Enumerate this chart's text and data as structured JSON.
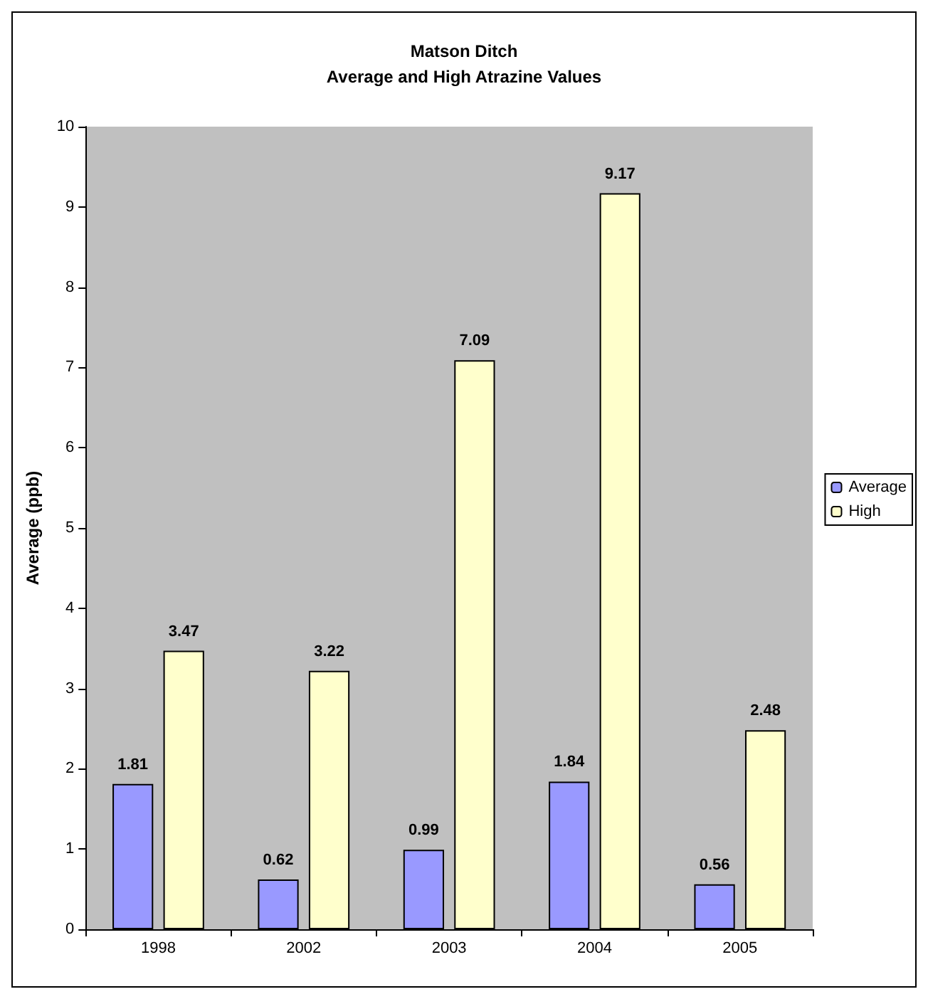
{
  "chart_data": {
    "type": "bar",
    "title": "Matson Ditch",
    "subtitle": "Average and High Atrazine Values",
    "ylabel": "Average (ppb)",
    "categories": [
      "1998",
      "2002",
      "2003",
      "2004",
      "2005"
    ],
    "series": [
      {
        "name": "Average",
        "color": "#9999ff",
        "values": [
          1.81,
          0.62,
          0.99,
          1.84,
          0.56
        ]
      },
      {
        "name": "High",
        "color": "#ffffcc",
        "values": [
          3.47,
          3.22,
          7.09,
          9.17,
          2.48
        ]
      }
    ],
    "ylim": [
      0,
      10
    ],
    "yticks": [
      0,
      1,
      2,
      3,
      4,
      5,
      6,
      7,
      8,
      9,
      10
    ],
    "grid": false,
    "legend": "right",
    "data_labels": true
  }
}
